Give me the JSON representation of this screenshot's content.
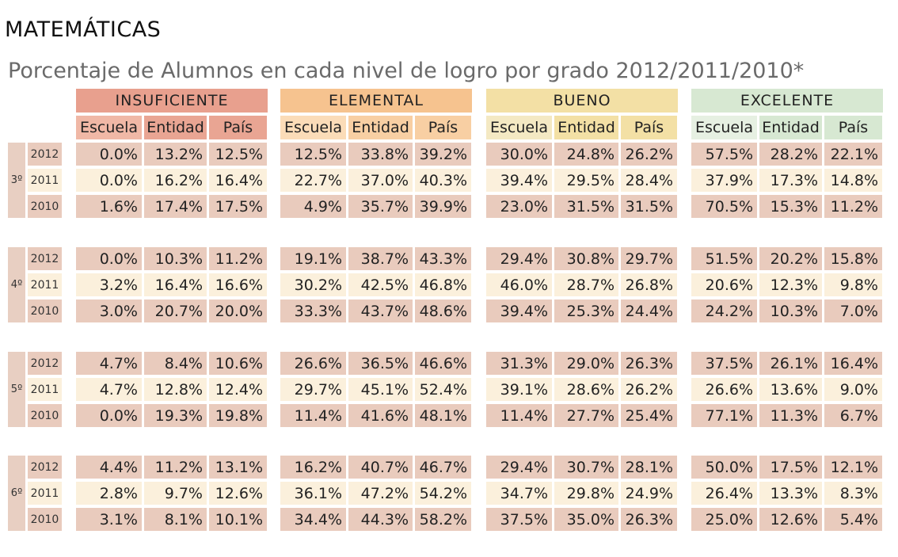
{
  "title": "MATEMÁTICAS",
  "subtitle": "Porcentaje de Alumnos en cada nivel de logro por grado 2012/2011/2010*",
  "levels": [
    {
      "label": "INSUFICIENTE",
      "color": "#e8a08e"
    },
    {
      "label": "ELEMENTAL",
      "color": "#f6c38f"
    },
    {
      "label": "BUENO",
      "color": "#f3e0a5"
    },
    {
      "label": "EXCELENTE",
      "color": "#d7e8d2"
    }
  ],
  "subheaders": [
    {
      "label": "Escuela",
      "color": "#f0b8a6"
    },
    {
      "label": "Entidad",
      "color": "#e9a593"
    },
    {
      "label": "País",
      "color": "#e9a593"
    },
    {
      "label": "Escuela",
      "color": "#fbdcb8"
    },
    {
      "label": "Entidad",
      "color": "#f8cfa3"
    },
    {
      "label": "País",
      "color": "#f8cfa3"
    },
    {
      "label": "Escuela",
      "color": "#f4e9c3"
    },
    {
      "label": "Entidad",
      "color": "#f3e0a5"
    },
    {
      "label": "País",
      "color": "#f3e0a5"
    },
    {
      "label": "Escuela",
      "color": "#e6f0e2"
    },
    {
      "label": "Entidad",
      "color": "#d7e8d2"
    },
    {
      "label": "País",
      "color": "#d7e8d2"
    }
  ],
  "row_colors": {
    "dark": "#e9cbbd",
    "light": "#fbf0dc"
  },
  "grades": [
    {
      "label": "3º",
      "rows": [
        {
          "year": "2012",
          "values": [
            "0.0%",
            "13.2%",
            "12.5%",
            "12.5%",
            "33.8%",
            "39.2%",
            "30.0%",
            "24.8%",
            "26.2%",
            "57.5%",
            "28.2%",
            "22.1%"
          ]
        },
        {
          "year": "2011",
          "values": [
            "0.0%",
            "16.2%",
            "16.4%",
            "22.7%",
            "37.0%",
            "40.3%",
            "39.4%",
            "29.5%",
            "28.4%",
            "37.9%",
            "17.3%",
            "14.8%"
          ]
        },
        {
          "year": "2010",
          "values": [
            "1.6%",
            "17.4%",
            "17.5%",
            "4.9%",
            "35.7%",
            "39.9%",
            "23.0%",
            "31.5%",
            "31.5%",
            "70.5%",
            "15.3%",
            "11.2%"
          ]
        }
      ]
    },
    {
      "label": "4º",
      "rows": [
        {
          "year": "2012",
          "values": [
            "0.0%",
            "10.3%",
            "11.2%",
            "19.1%",
            "38.7%",
            "43.3%",
            "29.4%",
            "30.8%",
            "29.7%",
            "51.5%",
            "20.2%",
            "15.8%"
          ]
        },
        {
          "year": "2011",
          "values": [
            "3.2%",
            "16.4%",
            "16.6%",
            "30.2%",
            "42.5%",
            "46.8%",
            "46.0%",
            "28.7%",
            "26.8%",
            "20.6%",
            "12.3%",
            "9.8%"
          ]
        },
        {
          "year": "2010",
          "values": [
            "3.0%",
            "20.7%",
            "20.0%",
            "33.3%",
            "43.7%",
            "48.6%",
            "39.4%",
            "25.3%",
            "24.4%",
            "24.2%",
            "10.3%",
            "7.0%"
          ]
        }
      ]
    },
    {
      "label": "5º",
      "rows": [
        {
          "year": "2012",
          "values": [
            "4.7%",
            "8.4%",
            "10.6%",
            "26.6%",
            "36.5%",
            "46.6%",
            "31.3%",
            "29.0%",
            "26.3%",
            "37.5%",
            "26.1%",
            "16.4%"
          ]
        },
        {
          "year": "2011",
          "values": [
            "4.7%",
            "12.8%",
            "12.4%",
            "29.7%",
            "45.1%",
            "52.4%",
            "39.1%",
            "28.6%",
            "26.2%",
            "26.6%",
            "13.6%",
            "9.0%"
          ]
        },
        {
          "year": "2010",
          "values": [
            "0.0%",
            "19.3%",
            "19.8%",
            "11.4%",
            "41.6%",
            "48.1%",
            "11.4%",
            "27.7%",
            "25.4%",
            "77.1%",
            "11.3%",
            "6.7%"
          ]
        }
      ]
    },
    {
      "label": "6º",
      "rows": [
        {
          "year": "2012",
          "values": [
            "4.4%",
            "11.2%",
            "13.1%",
            "16.2%",
            "40.7%",
            "46.7%",
            "29.4%",
            "30.7%",
            "28.1%",
            "50.0%",
            "17.5%",
            "12.1%"
          ]
        },
        {
          "year": "2011",
          "values": [
            "2.8%",
            "9.7%",
            "12.6%",
            "36.1%",
            "47.2%",
            "54.2%",
            "34.7%",
            "29.8%",
            "24.9%",
            "26.4%",
            "13.3%",
            "8.3%"
          ]
        },
        {
          "year": "2010",
          "values": [
            "3.1%",
            "8.1%",
            "10.1%",
            "34.4%",
            "44.3%",
            "58.2%",
            "37.5%",
            "35.0%",
            "26.3%",
            "25.0%",
            "12.6%",
            "5.4%"
          ]
        }
      ]
    }
  ]
}
